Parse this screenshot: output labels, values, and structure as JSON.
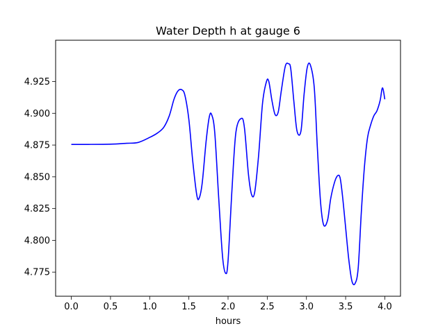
{
  "chart_data": {
    "type": "line",
    "title": "Water Depth h at gauge 6",
    "xlabel": "hours",
    "ylabel": "",
    "xlim": [
      -0.2,
      4.2
    ],
    "ylim": [
      4.756,
      4.9575
    ],
    "xticks": [
      0.0,
      0.5,
      1.0,
      1.5,
      2.0,
      2.5,
      3.0,
      3.5,
      4.0
    ],
    "xtick_labels": [
      "0.0",
      "0.5",
      "1.0",
      "1.5",
      "2.0",
      "2.5",
      "3.0",
      "3.5",
      "4.0"
    ],
    "yticks": [
      4.775,
      4.8,
      4.825,
      4.85,
      4.875,
      4.9,
      4.925
    ],
    "ytick_labels": [
      "4.775",
      "4.800",
      "4.825",
      "4.850",
      "4.875",
      "4.900",
      "4.925"
    ],
    "grid": false,
    "series": [
      {
        "color": "#0000ff",
        "x": [
          0.0,
          0.2,
          0.5,
          0.7,
          0.85,
          1.0,
          1.1,
          1.18,
          1.25,
          1.31,
          1.36,
          1.41,
          1.45,
          1.5,
          1.55,
          1.6,
          1.63,
          1.67,
          1.72,
          1.76,
          1.79,
          1.83,
          1.88,
          1.93,
          1.97,
          2.0,
          2.05,
          2.1,
          2.17,
          2.21,
          2.26,
          2.3,
          2.34,
          2.39,
          2.44,
          2.49,
          2.52,
          2.56,
          2.6,
          2.64,
          2.68,
          2.73,
          2.77,
          2.8,
          2.84,
          2.88,
          2.93,
          2.97,
          3.01,
          3.05,
          3.1,
          3.14,
          3.18,
          3.22,
          3.27,
          3.31,
          3.36,
          3.4,
          3.43,
          3.46,
          3.5,
          3.54,
          3.58,
          3.62,
          3.66,
          3.7,
          3.74,
          3.78,
          3.82,
          3.86,
          3.9,
          3.94,
          3.97,
          4.0
        ],
        "y": [
          4.8755,
          4.8755,
          4.8757,
          4.8764,
          4.877,
          4.881,
          4.8845,
          4.889,
          4.898,
          4.911,
          4.9175,
          4.9185,
          4.914,
          4.895,
          4.862,
          4.836,
          4.833,
          4.845,
          4.878,
          4.897,
          4.899,
          4.885,
          4.834,
          4.787,
          4.774,
          4.784,
          4.84,
          4.885,
          4.896,
          4.888,
          4.852,
          4.836,
          4.838,
          4.867,
          4.908,
          4.925,
          4.925,
          4.91,
          4.899,
          4.901,
          4.918,
          4.937,
          4.939,
          4.935,
          4.909,
          4.886,
          4.886,
          4.915,
          4.936,
          4.938,
          4.92,
          4.872,
          4.83,
          4.812,
          4.816,
          4.833,
          4.846,
          4.851,
          4.849,
          4.835,
          4.81,
          4.785,
          4.768,
          4.766,
          4.778,
          4.822,
          4.858,
          4.881,
          4.891,
          4.898,
          4.902,
          4.91,
          4.92,
          4.911
        ]
      }
    ]
  }
}
